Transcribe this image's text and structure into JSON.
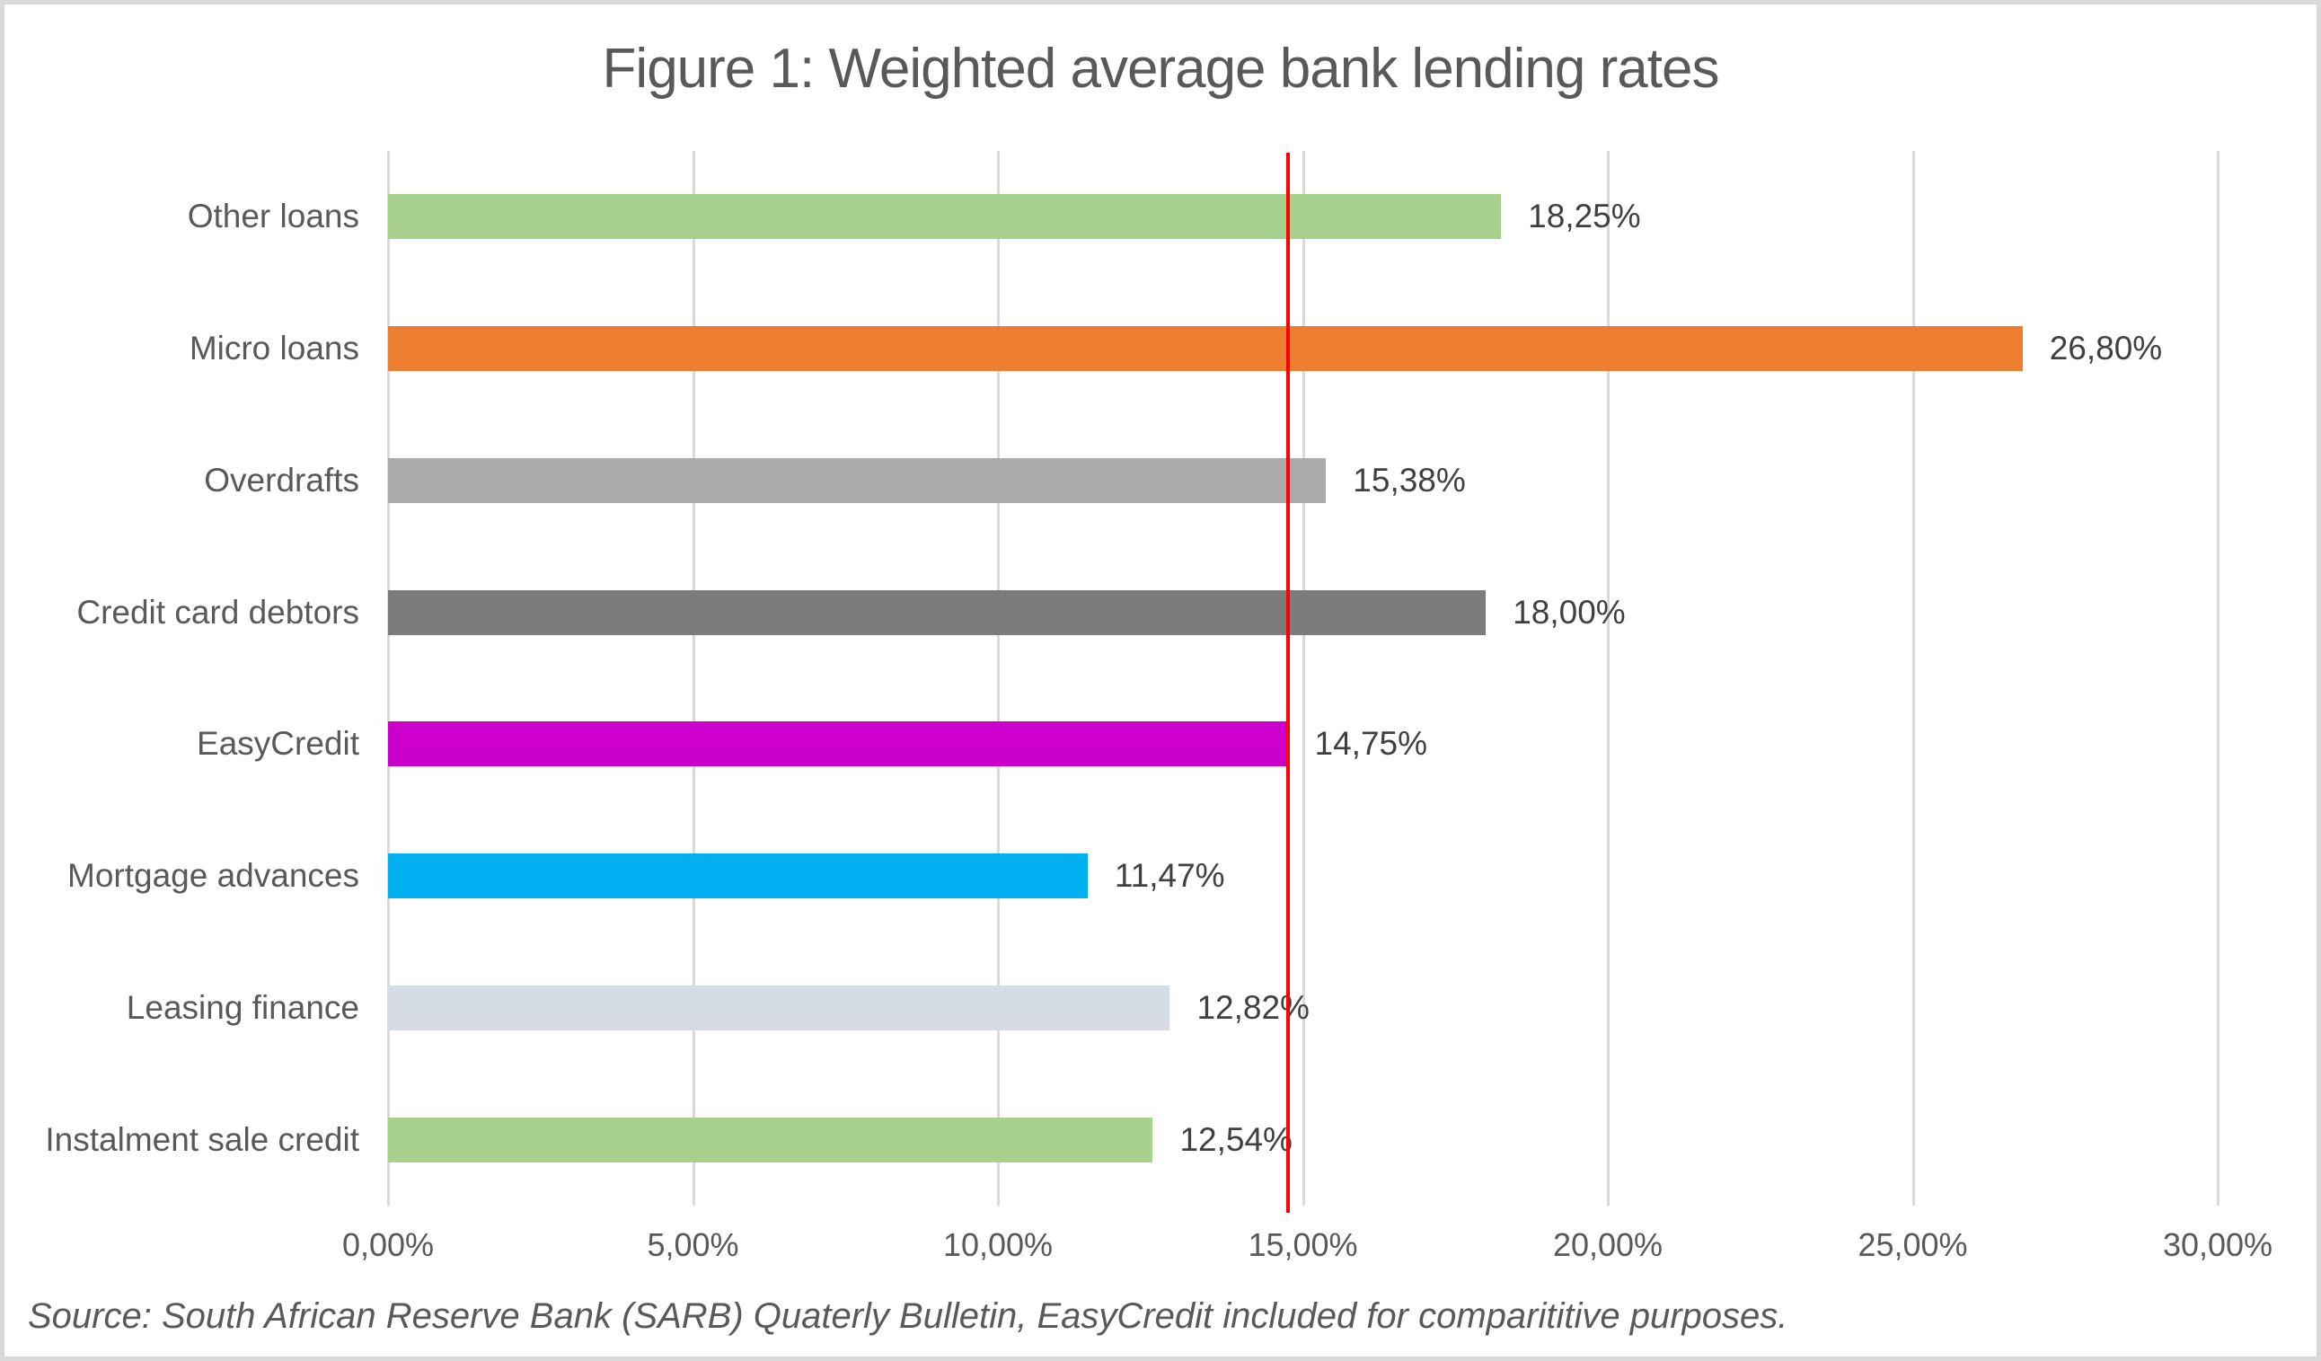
{
  "title": "Figure 1: Weighted average bank lending rates",
  "source_note": "Source: South African Reserve Bank (SARB) Quaterly Bulletin, EasyCredit included for comparititive purposes.",
  "colors": {
    "title_text": "#595959",
    "category_text": "#595959",
    "value_text": "#404040",
    "tick_text": "#595959",
    "gridline": "#d9d9d9",
    "frame_border": "#d9d9d9",
    "reference_line": "#ff0000"
  },
  "chart_data": {
    "type": "bar",
    "orientation": "horizontal",
    "title": "Figure 1: Weighted average bank lending rates",
    "categories": [
      "Other loans",
      "Micro loans",
      "Overdrafts",
      "Credit card debtors",
      "EasyCredit",
      "Mortgage advances",
      "Leasing finance",
      "Instalment sale credit"
    ],
    "values": [
      18.25,
      26.8,
      15.38,
      18.0,
      14.75,
      11.47,
      12.82,
      12.54
    ],
    "value_labels": [
      "18,25%",
      "26,80%",
      "15,38%",
      "18,00%",
      "14,75%",
      "11,47%",
      "12,82%",
      "12,54%"
    ],
    "bar_colors": [
      "#a9d18e",
      "#ed7d31",
      "#aca9a9",
      "#7c7c7c",
      "#cc00cc",
      "#00b0f0",
      "#d6dce4",
      "#a9d18e"
    ],
    "xlabel": "",
    "ylabel": "",
    "xlim": [
      0,
      30
    ],
    "x_tick_values": [
      0,
      5,
      10,
      15,
      20,
      25,
      30
    ],
    "x_tick_labels": [
      "0,00%",
      "5,00%",
      "10,00%",
      "15,00%",
      "20,00%",
      "25,00%",
      "30,00%"
    ],
    "grid": true,
    "legend": false,
    "reference_line": {
      "value": 14.75,
      "color": "#ff0000",
      "note": "vertical red line at EasyCredit rate"
    }
  }
}
